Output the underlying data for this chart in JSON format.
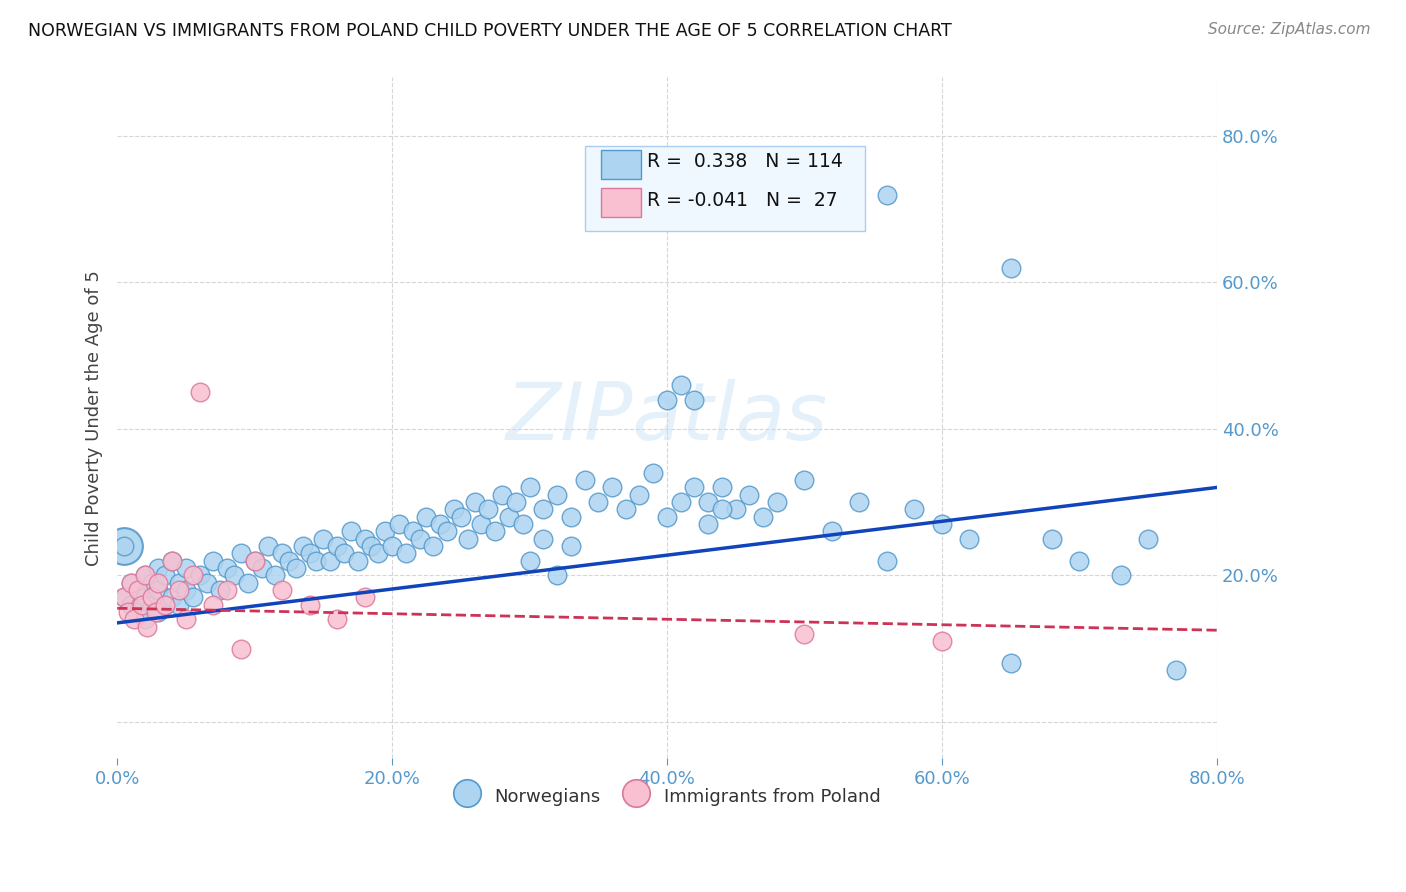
{
  "title": "NORWEGIAN VS IMMIGRANTS FROM POLAND CHILD POVERTY UNDER THE AGE OF 5 CORRELATION CHART",
  "source": "Source: ZipAtlas.com",
  "ylabel": "Child Poverty Under the Age of 5",
  "xlim": [
    0.0,
    0.8
  ],
  "ylim": [
    -0.05,
    0.88
  ],
  "R_norwegian": 0.338,
  "N_norwegian": 114,
  "R_poland": -0.041,
  "N_poland": 27,
  "norwegian_color": "#add4f0",
  "norwegian_edge_color": "#5599cc",
  "poland_color": "#f8c0d0",
  "poland_edge_color": "#dd7799",
  "trend_norwegian_color": "#1144bb",
  "trend_poland_color": "#cc3355",
  "trend_nor_x0": 0.0,
  "trend_nor_y0": 0.135,
  "trend_nor_x1": 0.8,
  "trend_nor_y1": 0.32,
  "trend_pol_x0": 0.0,
  "trend_pol_y0": 0.155,
  "trend_pol_x1": 0.8,
  "trend_pol_y1": 0.125,
  "background_color": "#ffffff",
  "grid_color": "#cccccc",
  "axis_color": "#5599cc",
  "watermark": "ZIPatlas",
  "nor_x": [
    0.005,
    0.01,
    0.01,
    0.015,
    0.015,
    0.02,
    0.02,
    0.02,
    0.025,
    0.025,
    0.03,
    0.03,
    0.03,
    0.035,
    0.035,
    0.04,
    0.04,
    0.045,
    0.045,
    0.05,
    0.05,
    0.055,
    0.06,
    0.065,
    0.07,
    0.075,
    0.08,
    0.085,
    0.09,
    0.095,
    0.1,
    0.105,
    0.11,
    0.115,
    0.12,
    0.125,
    0.13,
    0.135,
    0.14,
    0.145,
    0.15,
    0.155,
    0.16,
    0.165,
    0.17,
    0.175,
    0.18,
    0.185,
    0.19,
    0.195,
    0.2,
    0.205,
    0.21,
    0.215,
    0.22,
    0.225,
    0.23,
    0.235,
    0.24,
    0.245,
    0.25,
    0.255,
    0.26,
    0.265,
    0.27,
    0.275,
    0.28,
    0.285,
    0.29,
    0.295,
    0.3,
    0.31,
    0.32,
    0.33,
    0.34,
    0.35,
    0.36,
    0.37,
    0.38,
    0.39,
    0.4,
    0.41,
    0.42,
    0.43,
    0.44,
    0.45,
    0.46,
    0.47,
    0.48,
    0.5,
    0.52,
    0.54,
    0.56,
    0.58,
    0.6,
    0.62,
    0.65,
    0.68,
    0.7,
    0.73,
    0.56,
    0.65,
    0.75,
    0.77,
    0.005,
    0.4,
    0.41,
    0.42,
    0.43,
    0.44,
    0.3,
    0.31,
    0.32,
    0.33
  ],
  "nor_y": [
    0.17,
    0.16,
    0.19,
    0.15,
    0.18,
    0.14,
    0.17,
    0.2,
    0.16,
    0.19,
    0.15,
    0.18,
    0.21,
    0.16,
    0.2,
    0.17,
    0.22,
    0.16,
    0.19,
    0.18,
    0.21,
    0.17,
    0.2,
    0.19,
    0.22,
    0.18,
    0.21,
    0.2,
    0.23,
    0.19,
    0.22,
    0.21,
    0.24,
    0.2,
    0.23,
    0.22,
    0.21,
    0.24,
    0.23,
    0.22,
    0.25,
    0.22,
    0.24,
    0.23,
    0.26,
    0.22,
    0.25,
    0.24,
    0.23,
    0.26,
    0.24,
    0.27,
    0.23,
    0.26,
    0.25,
    0.28,
    0.24,
    0.27,
    0.26,
    0.29,
    0.28,
    0.25,
    0.3,
    0.27,
    0.29,
    0.26,
    0.31,
    0.28,
    0.3,
    0.27,
    0.32,
    0.29,
    0.31,
    0.28,
    0.33,
    0.3,
    0.32,
    0.29,
    0.31,
    0.34,
    0.44,
    0.46,
    0.44,
    0.3,
    0.32,
    0.29,
    0.31,
    0.28,
    0.3,
    0.33,
    0.26,
    0.3,
    0.22,
    0.29,
    0.27,
    0.25,
    0.08,
    0.25,
    0.22,
    0.2,
    0.72,
    0.62,
    0.25,
    0.07,
    0.24,
    0.28,
    0.3,
    0.32,
    0.27,
    0.29,
    0.22,
    0.25,
    0.2,
    0.24
  ],
  "pol_x": [
    0.005,
    0.008,
    0.01,
    0.012,
    0.015,
    0.018,
    0.02,
    0.022,
    0.025,
    0.028,
    0.03,
    0.035,
    0.04,
    0.045,
    0.05,
    0.055,
    0.06,
    0.07,
    0.08,
    0.09,
    0.1,
    0.12,
    0.14,
    0.16,
    0.18,
    0.5,
    0.6
  ],
  "pol_y": [
    0.17,
    0.15,
    0.19,
    0.14,
    0.18,
    0.16,
    0.2,
    0.13,
    0.17,
    0.15,
    0.19,
    0.16,
    0.22,
    0.18,
    0.14,
    0.2,
    0.45,
    0.16,
    0.18,
    0.1,
    0.22,
    0.18,
    0.16,
    0.14,
    0.17,
    0.12,
    0.11
  ]
}
